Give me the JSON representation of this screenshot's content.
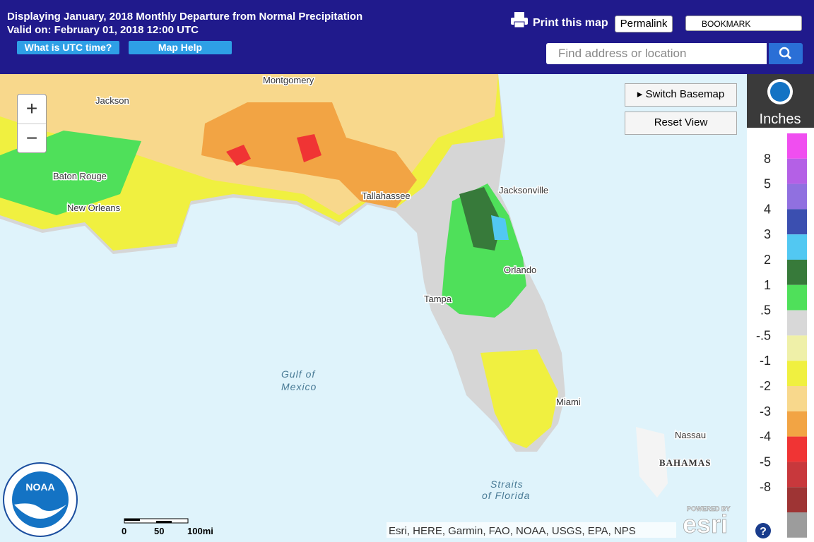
{
  "header": {
    "title": "Displaying January, 2018 Monthly Departure from Normal Precipitation",
    "valid": "Valid on: February 01, 2018 12:00 UTC",
    "utc_button": "What is UTC time?",
    "help_button": "Map Help",
    "print": "Print this map",
    "permalink": "Permalink",
    "bookmark": "BOOKMARK",
    "search_placeholder": "Find address or location"
  },
  "map": {
    "zoom_in": "+",
    "zoom_out": "−",
    "switch_basemap": "Switch Basemap",
    "reset_view": "Reset View",
    "places": [
      "Montgomery",
      "Jackson",
      "Baton Rouge",
      "New Orleans",
      "Tallahassee",
      "Jacksonville",
      "Orlando",
      "Tampa",
      "Miami",
      "Nassau",
      "BAHAMAS"
    ],
    "water": [
      "Gulf of",
      "Mexico",
      "Straits",
      "of Florida"
    ],
    "scale": [
      "0",
      "50",
      "100mi"
    ],
    "attribution": "Esri, HERE, Garmin, FAO, NOAA, USGS, EPA, NPS",
    "esri_note": "POWERED BY",
    "esri": "esri",
    "noaa": "NOAA"
  },
  "legend": {
    "title": "Inches",
    "colors": [
      "#f04ef0",
      "#b460e6",
      "#9070e0",
      "#3b4fb0",
      "#52c8f2",
      "#377a3a",
      "#4fe05a",
      "#d8d8d8",
      "#eff0a8",
      "#f0f040",
      "#f8d88c",
      "#f2a444",
      "#f03434",
      "#c8383c",
      "#9e3434",
      "#9c9c9c"
    ],
    "labels": [
      "8",
      "5",
      "4",
      "3",
      "2",
      "1",
      ".5",
      "-.5",
      "-1",
      "-2",
      "-3",
      "-4",
      "-5",
      "-8"
    ],
    "help": "?"
  }
}
